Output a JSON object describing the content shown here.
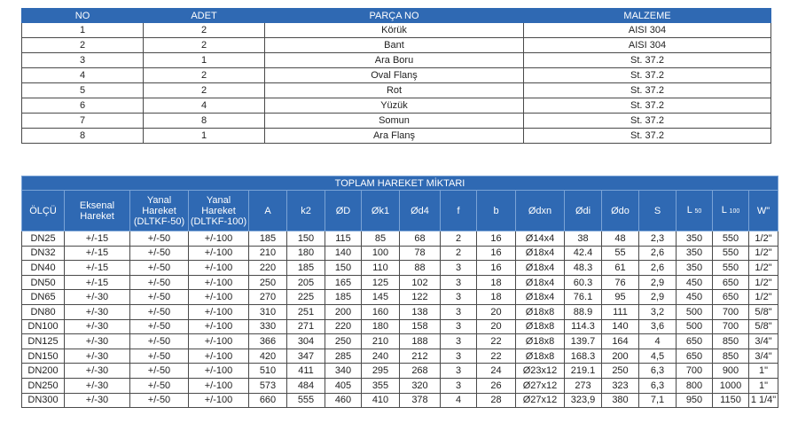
{
  "parts_table": {
    "headers": [
      "NO",
      "ADET",
      "PARÇA NO",
      "MALZEME"
    ],
    "rows": [
      [
        "1",
        "2",
        "Körük",
        "AISI 304"
      ],
      [
        "2",
        "2",
        "Bant",
        "AISI 304"
      ],
      [
        "3",
        "1",
        "Ara Boru",
        "St. 37.2"
      ],
      [
        "4",
        "2",
        "Oval Flanş",
        "St. 37.2"
      ],
      [
        "5",
        "2",
        "Rot",
        "St. 37.2"
      ],
      [
        "6",
        "4",
        "Yüzük",
        "St. 37.2"
      ],
      [
        "7",
        "8",
        "Somun",
        "St. 37.2"
      ],
      [
        "8",
        "1",
        "Ara Flanş",
        "St. 37.2"
      ]
    ]
  },
  "dims_table": {
    "title": "TOPLAM HAREKET MİKTARI",
    "headers": {
      "olcu": "ÖLÇÜ",
      "eksenal_1": "Eksenal",
      "eksenal_2": "Hareket",
      "yanal50_1": "Yanal",
      "yanal50_2": "Hareket",
      "yanal50_3": "(DLTKF-50)",
      "yanal100_1": "Yanal",
      "yanal100_2": "Hareket",
      "yanal100_3": "(DLTKF-100)",
      "a": "A",
      "k2": "k2",
      "od": "ØD",
      "ok1": "Øk1",
      "od4": "Ød4",
      "f": "f",
      "b": "b",
      "odxn": "Ødxn",
      "odi": "Ødi",
      "odo": "Ødo",
      "s": "S",
      "l50_main": "L",
      "l50_sub": "50",
      "l100_main": "L",
      "l100_sub": "100",
      "w": "W\""
    },
    "rows": [
      [
        "DN25",
        "+/-15",
        "+/-50",
        "+/-100",
        "185",
        "150",
        "115",
        "85",
        "68",
        "2",
        "16",
        "Ø14x4",
        "38",
        "48",
        "2,3",
        "350",
        "550",
        "1/2\""
      ],
      [
        "DN32",
        "+/-15",
        "+/-50",
        "+/-100",
        "210",
        "180",
        "140",
        "100",
        "78",
        "2",
        "16",
        "Ø18x4",
        "42.4",
        "55",
        "2,6",
        "350",
        "550",
        "1/2\""
      ],
      [
        "DN40",
        "+/-15",
        "+/-50",
        "+/-100",
        "220",
        "185",
        "150",
        "110",
        "88",
        "3",
        "16",
        "Ø18x4",
        "48.3",
        "61",
        "2,6",
        "350",
        "550",
        "1/2\""
      ],
      [
        "DN50",
        "+/-15",
        "+/-50",
        "+/-100",
        "250",
        "205",
        "165",
        "125",
        "102",
        "3",
        "18",
        "Ø18x4",
        "60.3",
        "76",
        "2,9",
        "450",
        "650",
        "1/2\""
      ],
      [
        "DN65",
        "+/-30",
        "+/-50",
        "+/-100",
        "270",
        "225",
        "185",
        "145",
        "122",
        "3",
        "18",
        "Ø18x4",
        "76.1",
        "95",
        "2,9",
        "450",
        "650",
        "1/2\""
      ],
      [
        "DN80",
        "+/-30",
        "+/-50",
        "+/-100",
        "310",
        "251",
        "200",
        "160",
        "138",
        "3",
        "20",
        "Ø18x8",
        "88.9",
        "111",
        "3,2",
        "500",
        "700",
        "5/8\""
      ],
      [
        "DN100",
        "+/-30",
        "+/-50",
        "+/-100",
        "330",
        "271",
        "220",
        "180",
        "158",
        "3",
        "20",
        "Ø18x8",
        "114.3",
        "140",
        "3,6",
        "500",
        "700",
        "5/8\""
      ],
      [
        "DN125",
        "+/-30",
        "+/-50",
        "+/-100",
        "366",
        "304",
        "250",
        "210",
        "188",
        "3",
        "22",
        "Ø18x8",
        "139.7",
        "164",
        "4",
        "650",
        "850",
        "3/4\""
      ],
      [
        "DN150",
        "+/-30",
        "+/-50",
        "+/-100",
        "420",
        "347",
        "285",
        "240",
        "212",
        "3",
        "22",
        "Ø18x8",
        "168.3",
        "200",
        "4,5",
        "650",
        "850",
        "3/4\""
      ],
      [
        "DN200",
        "+/-30",
        "+/-50",
        "+/-100",
        "510",
        "411",
        "340",
        "295",
        "268",
        "3",
        "24",
        "Ø23x12",
        "219.1",
        "250",
        "6,3",
        "700",
        "900",
        "1\""
      ],
      [
        "DN250",
        "+/-30",
        "+/-50",
        "+/-100",
        "573",
        "484",
        "405",
        "355",
        "320",
        "3",
        "26",
        "Ø27x12",
        "273",
        "323",
        "6,3",
        "800",
        "1000",
        "1\""
      ],
      [
        "DN300",
        "+/-30",
        "+/-50",
        "+/-100",
        "660",
        "555",
        "460",
        "410",
        "378",
        "4",
        "28",
        "Ø27x12",
        "323,9",
        "380",
        "7,1",
        "950",
        "1150",
        "1 1/4\""
      ]
    ]
  }
}
